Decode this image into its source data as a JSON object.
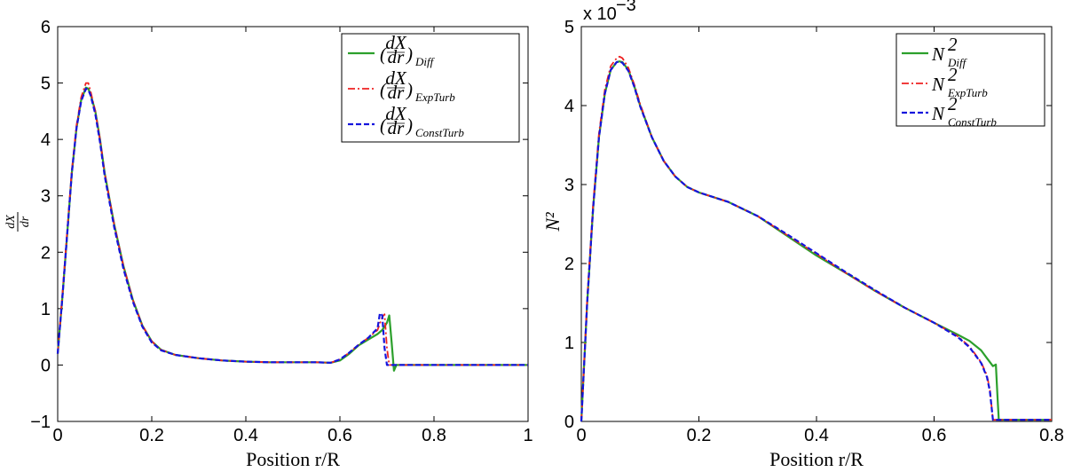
{
  "colors": {
    "diff": "#2ca02c",
    "exp_turb": "#ee2222",
    "const_turb": "#1515dd"
  },
  "chart_data": [
    {
      "type": "line",
      "title": "",
      "xlabel": "Position r/R",
      "ylabel": "dX/dr",
      "xlim": [
        0,
        1
      ],
      "ylim": [
        -1,
        6
      ],
      "xticks": [
        "0",
        "0.2",
        "0.4",
        "0.6",
        "0.8",
        "1"
      ],
      "yticks": [
        "−1",
        "0",
        "1",
        "2",
        "3",
        "4",
        "5",
        "6"
      ],
      "legend_position": "top-right",
      "grid": false,
      "series": [
        {
          "name": "(dX/dr)_Diff",
          "style": "solid",
          "color_key": "diff",
          "points": [
            [
              0,
              0.2
            ],
            [
              0.01,
              1.2
            ],
            [
              0.02,
              2.3
            ],
            [
              0.03,
              3.4
            ],
            [
              0.04,
              4.2
            ],
            [
              0.05,
              4.7
            ],
            [
              0.06,
              4.92
            ],
            [
              0.065,
              4.9
            ],
            [
              0.07,
              4.8
            ],
            [
              0.08,
              4.5
            ],
            [
              0.09,
              4.0
            ],
            [
              0.1,
              3.4
            ],
            [
              0.12,
              2.5
            ],
            [
              0.14,
              1.75
            ],
            [
              0.16,
              1.15
            ],
            [
              0.18,
              0.7
            ],
            [
              0.2,
              0.42
            ],
            [
              0.22,
              0.27
            ],
            [
              0.25,
              0.18
            ],
            [
              0.3,
              0.12
            ],
            [
              0.35,
              0.08
            ],
            [
              0.4,
              0.06
            ],
            [
              0.45,
              0.05
            ],
            [
              0.5,
              0.05
            ],
            [
              0.55,
              0.05
            ],
            [
              0.58,
              0.04
            ],
            [
              0.6,
              0.08
            ],
            [
              0.62,
              0.2
            ],
            [
              0.64,
              0.35
            ],
            [
              0.66,
              0.45
            ],
            [
              0.68,
              0.55
            ],
            [
              0.69,
              0.62
            ],
            [
              0.7,
              0.75
            ],
            [
              0.705,
              0.88
            ],
            [
              0.71,
              0.4
            ],
            [
              0.715,
              -0.1
            ],
            [
              0.72,
              0.0
            ],
            [
              0.8,
              0.0
            ],
            [
              0.9,
              0.0
            ],
            [
              1.0,
              0.0
            ]
          ]
        },
        {
          "name": "(dX/dr)_ExpTurb",
          "style": "dashdot",
          "color_key": "exp_turb",
          "points": [
            [
              0,
              0.2
            ],
            [
              0.01,
              1.25
            ],
            [
              0.02,
              2.35
            ],
            [
              0.03,
              3.45
            ],
            [
              0.04,
              4.25
            ],
            [
              0.05,
              4.75
            ],
            [
              0.06,
              5.0
            ],
            [
              0.065,
              5.0
            ],
            [
              0.07,
              4.85
            ],
            [
              0.08,
              4.5
            ],
            [
              0.09,
              4.0
            ],
            [
              0.1,
              3.4
            ],
            [
              0.12,
              2.5
            ],
            [
              0.14,
              1.75
            ],
            [
              0.16,
              1.15
            ],
            [
              0.18,
              0.7
            ],
            [
              0.2,
              0.42
            ],
            [
              0.22,
              0.27
            ],
            [
              0.25,
              0.18
            ],
            [
              0.3,
              0.12
            ],
            [
              0.35,
              0.08
            ],
            [
              0.4,
              0.06
            ],
            [
              0.45,
              0.05
            ],
            [
              0.5,
              0.05
            ],
            [
              0.55,
              0.05
            ],
            [
              0.58,
              0.04
            ],
            [
              0.6,
              0.1
            ],
            [
              0.62,
              0.22
            ],
            [
              0.64,
              0.36
            ],
            [
              0.66,
              0.48
            ],
            [
              0.68,
              0.62
            ],
            [
              0.69,
              0.85
            ],
            [
              0.695,
              0.9
            ],
            [
              0.7,
              0.3
            ],
            [
              0.705,
              0.0
            ],
            [
              0.8,
              0.0
            ],
            [
              0.9,
              0.0
            ],
            [
              1.0,
              0.0
            ]
          ]
        },
        {
          "name": "(dX/dr)_ConstTurb",
          "style": "dashed",
          "color_key": "const_turb",
          "points": [
            [
              0,
              0.2
            ],
            [
              0.01,
              1.2
            ],
            [
              0.02,
              2.3
            ],
            [
              0.03,
              3.4
            ],
            [
              0.04,
              4.2
            ],
            [
              0.05,
              4.68
            ],
            [
              0.06,
              4.9
            ],
            [
              0.065,
              4.88
            ],
            [
              0.07,
              4.78
            ],
            [
              0.08,
              4.45
            ],
            [
              0.09,
              3.95
            ],
            [
              0.1,
              3.35
            ],
            [
              0.12,
              2.45
            ],
            [
              0.14,
              1.7
            ],
            [
              0.16,
              1.12
            ],
            [
              0.18,
              0.68
            ],
            [
              0.2,
              0.4
            ],
            [
              0.22,
              0.26
            ],
            [
              0.25,
              0.18
            ],
            [
              0.3,
              0.12
            ],
            [
              0.35,
              0.08
            ],
            [
              0.4,
              0.06
            ],
            [
              0.45,
              0.05
            ],
            [
              0.5,
              0.05
            ],
            [
              0.55,
              0.05
            ],
            [
              0.58,
              0.04
            ],
            [
              0.6,
              0.1
            ],
            [
              0.62,
              0.22
            ],
            [
              0.64,
              0.36
            ],
            [
              0.66,
              0.48
            ],
            [
              0.68,
              0.65
            ],
            [
              0.685,
              0.92
            ],
            [
              0.69,
              0.88
            ],
            [
              0.695,
              0.3
            ],
            [
              0.7,
              0.0
            ],
            [
              0.8,
              0.0
            ],
            [
              0.9,
              0.0
            ],
            [
              1.0,
              0.0
            ]
          ]
        }
      ]
    },
    {
      "type": "line",
      "title": "",
      "xlabel": "Position r/R",
      "ylabel": "N²",
      "xlim": [
        0,
        0.8
      ],
      "ylim": [
        0,
        5
      ],
      "xticks": [
        "0",
        "0.2",
        "0.4",
        "0.6",
        "0.8"
      ],
      "yticks": [
        "0",
        "1",
        "2",
        "3",
        "4",
        "5"
      ],
      "y_multiplier": "x 10",
      "y_exponent": "−3",
      "legend_position": "top-right",
      "grid": false,
      "series": [
        {
          "name": "N²_Diff",
          "style": "solid",
          "color_key": "diff",
          "points": [
            [
              0,
              0
            ],
            [
              0.01,
              1.5
            ],
            [
              0.02,
              2.7
            ],
            [
              0.03,
              3.6
            ],
            [
              0.04,
              4.15
            ],
            [
              0.05,
              4.45
            ],
            [
              0.06,
              4.55
            ],
            [
              0.065,
              4.56
            ],
            [
              0.07,
              4.55
            ],
            [
              0.08,
              4.45
            ],
            [
              0.09,
              4.25
            ],
            [
              0.1,
              4.0
            ],
            [
              0.12,
              3.6
            ],
            [
              0.14,
              3.3
            ],
            [
              0.16,
              3.1
            ],
            [
              0.18,
              2.97
            ],
            [
              0.2,
              2.9
            ],
            [
              0.25,
              2.78
            ],
            [
              0.3,
              2.6
            ],
            [
              0.35,
              2.35
            ],
            [
              0.4,
              2.1
            ],
            [
              0.45,
              1.88
            ],
            [
              0.5,
              1.65
            ],
            [
              0.55,
              1.44
            ],
            [
              0.6,
              1.25
            ],
            [
              0.64,
              1.1
            ],
            [
              0.66,
              1.02
            ],
            [
              0.68,
              0.9
            ],
            [
              0.69,
              0.8
            ],
            [
              0.7,
              0.7
            ],
            [
              0.705,
              0.72
            ],
            [
              0.708,
              0.3
            ],
            [
              0.71,
              0.02
            ],
            [
              0.75,
              0.02
            ],
            [
              0.8,
              0.02
            ]
          ]
        },
        {
          "name": "N²_ExpTurb",
          "style": "dashdot",
          "color_key": "exp_turb",
          "points": [
            [
              0,
              0
            ],
            [
              0.01,
              1.55
            ],
            [
              0.02,
              2.75
            ],
            [
              0.03,
              3.65
            ],
            [
              0.04,
              4.2
            ],
            [
              0.05,
              4.5
            ],
            [
              0.06,
              4.6
            ],
            [
              0.065,
              4.62
            ],
            [
              0.07,
              4.6
            ],
            [
              0.08,
              4.48
            ],
            [
              0.09,
              4.27
            ],
            [
              0.1,
              4.02
            ],
            [
              0.12,
              3.6
            ],
            [
              0.14,
              3.3
            ],
            [
              0.16,
              3.1
            ],
            [
              0.18,
              2.97
            ],
            [
              0.2,
              2.9
            ],
            [
              0.25,
              2.78
            ],
            [
              0.3,
              2.6
            ],
            [
              0.35,
              2.36
            ],
            [
              0.4,
              2.12
            ],
            [
              0.45,
              1.88
            ],
            [
              0.5,
              1.65
            ],
            [
              0.55,
              1.44
            ],
            [
              0.6,
              1.25
            ],
            [
              0.64,
              1.08
            ],
            [
              0.66,
              0.95
            ],
            [
              0.68,
              0.75
            ],
            [
              0.69,
              0.58
            ],
            [
              0.695,
              0.4
            ],
            [
              0.7,
              0.02
            ],
            [
              0.75,
              0.02
            ],
            [
              0.8,
              0.02
            ]
          ]
        },
        {
          "name": "N²_ConstTurb",
          "style": "dashed",
          "color_key": "const_turb",
          "points": [
            [
              0,
              0
            ],
            [
              0.01,
              1.5
            ],
            [
              0.02,
              2.7
            ],
            [
              0.03,
              3.6
            ],
            [
              0.04,
              4.15
            ],
            [
              0.05,
              4.45
            ],
            [
              0.06,
              4.55
            ],
            [
              0.065,
              4.56
            ],
            [
              0.07,
              4.54
            ],
            [
              0.08,
              4.44
            ],
            [
              0.09,
              4.24
            ],
            [
              0.1,
              3.99
            ],
            [
              0.12,
              3.6
            ],
            [
              0.14,
              3.3
            ],
            [
              0.16,
              3.1
            ],
            [
              0.18,
              2.97
            ],
            [
              0.2,
              2.9
            ],
            [
              0.25,
              2.78
            ],
            [
              0.3,
              2.6
            ],
            [
              0.35,
              2.37
            ],
            [
              0.4,
              2.13
            ],
            [
              0.45,
              1.89
            ],
            [
              0.5,
              1.66
            ],
            [
              0.55,
              1.44
            ],
            [
              0.6,
              1.25
            ],
            [
              0.64,
              1.07
            ],
            [
              0.66,
              0.94
            ],
            [
              0.68,
              0.74
            ],
            [
              0.69,
              0.56
            ],
            [
              0.695,
              0.38
            ],
            [
              0.7,
              0.02
            ],
            [
              0.75,
              0.02
            ],
            [
              0.8,
              0.02
            ]
          ]
        }
      ]
    }
  ]
}
